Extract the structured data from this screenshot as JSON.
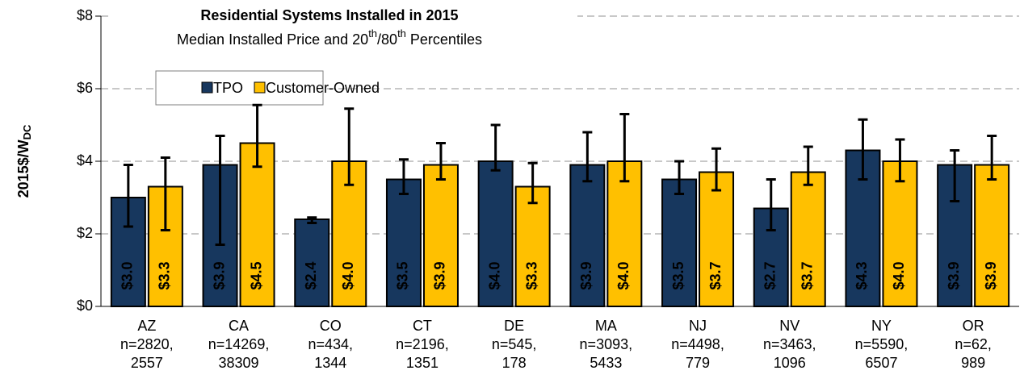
{
  "chart_data": {
    "type": "bar",
    "title": "Residential Systems Installed in 2015",
    "subtitle": [
      {
        "text": "Median Installed Price and 20"
      },
      {
        "text": "th",
        "sup": true
      },
      {
        "text": "/80"
      },
      {
        "text": "th",
        "sup": true
      },
      {
        "text": " Percentiles"
      }
    ],
    "ylabel": {
      "text": "2015$/W",
      "sub": "DC"
    },
    "categories": [
      [
        "AZ",
        "n=2820,",
        "2557"
      ],
      [
        "CA",
        "n=14269,",
        "38309"
      ],
      [
        "CO",
        "n=434,",
        "1344"
      ],
      [
        "CT",
        "n=2196,",
        "1351"
      ],
      [
        "DE",
        "n=545,",
        "178"
      ],
      [
        "MA",
        "n=3093,",
        "5433"
      ],
      [
        "NJ",
        "n=4498,",
        "779"
      ],
      [
        "NV",
        "n=3463,",
        "1096"
      ],
      [
        "NY",
        "n=5590,",
        "6507"
      ],
      [
        "OR",
        "n=62,",
        "989"
      ]
    ],
    "series": [
      {
        "name": "TPO",
        "color": "#17375e",
        "values": [
          3.0,
          3.9,
          2.4,
          3.5,
          4.0,
          3.9,
          3.5,
          2.7,
          4.3,
          3.9
        ],
        "value_labels": [
          "$3.0",
          "$3.9",
          "$2.4",
          "$3.5",
          "$4.0",
          "$3.9",
          "$3.5",
          "$2.7",
          "$4.3",
          "$3.9"
        ],
        "low": [
          2.2,
          1.7,
          2.3,
          3.1,
          3.75,
          3.45,
          3.1,
          2.1,
          3.5,
          2.9
        ],
        "high": [
          3.9,
          4.7,
          2.45,
          4.05,
          5.0,
          4.8,
          4.0,
          3.5,
          5.15,
          4.3
        ]
      },
      {
        "name": "Customer-Owned",
        "color": "#ffc000",
        "values": [
          3.3,
          4.5,
          4.0,
          3.9,
          3.3,
          4.0,
          3.7,
          3.7,
          4.0,
          3.9
        ],
        "value_labels": [
          "$3.3",
          "$4.5",
          "$4.0",
          "$3.9",
          "$3.3",
          "$4.0",
          "$3.7",
          "$3.7",
          "$4.0",
          "$3.9"
        ],
        "low": [
          2.1,
          3.85,
          3.35,
          3.5,
          2.85,
          3.45,
          3.2,
          3.35,
          3.45,
          3.5
        ],
        "high": [
          4.1,
          5.55,
          5.45,
          4.5,
          3.95,
          5.3,
          4.35,
          4.4,
          4.6,
          4.7
        ]
      }
    ],
    "ylim": [
      0,
      8
    ],
    "yticks": [
      {
        "value": 0,
        "label": "$0"
      },
      {
        "value": 2,
        "label": "$2"
      },
      {
        "value": 4,
        "label": "$4"
      },
      {
        "value": 6,
        "label": "$6"
      },
      {
        "value": 8,
        "label": "$8"
      }
    ],
    "grid": true
  }
}
